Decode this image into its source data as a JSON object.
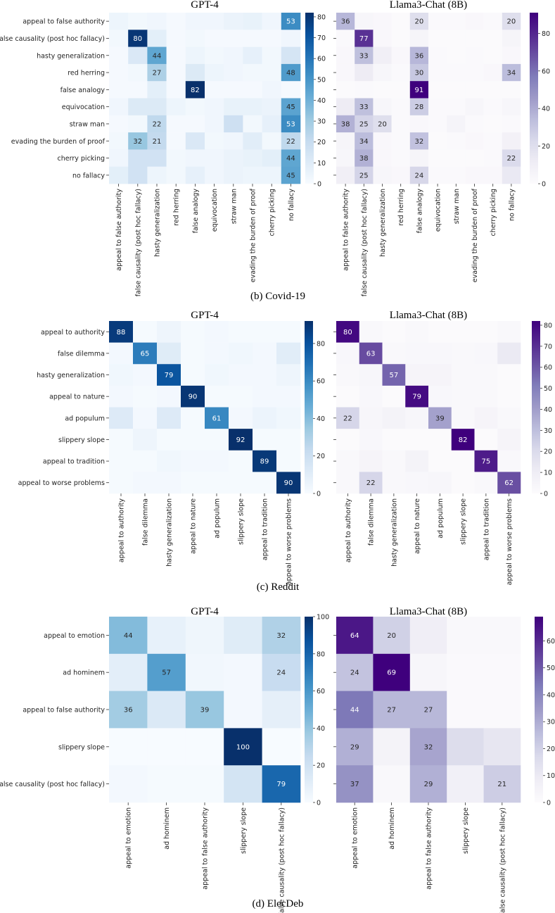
{
  "palettes": {
    "blues": [
      "#f7fbff",
      "#deebf7",
      "#c6dbef",
      "#9ecae1",
      "#6baed6",
      "#4292c6",
      "#2171b5",
      "#08519c",
      "#08306b"
    ],
    "purples": [
      "#fcfbfd",
      "#efedf5",
      "#dadaeb",
      "#bcbddc",
      "#9e9ac8",
      "#807dba",
      "#6a51a3",
      "#54278f",
      "#3f007d"
    ]
  },
  "chart_data": [
    {
      "id": "covid-gpt4",
      "type": "heatmap",
      "title": "GPT-4",
      "cmap": "blues",
      "vmin": 0,
      "vmax": 82,
      "categories": [
        "appeal to false authority",
        "false causality (post hoc fallacy)",
        "hasty generalization",
        "red herring",
        "false analogy",
        "equivocation",
        "straw man",
        "evading the burden of proof",
        "cherry picking",
        "no fallacy"
      ],
      "values": [
        [
          4,
          2,
          3,
          1,
          3,
          3,
          5,
          6,
          3,
          53
        ],
        [
          2,
          80,
          8,
          1,
          2,
          1,
          1,
          1,
          1,
          3
        ],
        [
          1,
          12,
          44,
          1,
          4,
          2,
          3,
          7,
          2,
          14
        ],
        [
          1,
          2,
          27,
          1,
          11,
          4,
          3,
          2,
          2,
          48
        ],
        [
          1,
          1,
          8,
          1,
          82,
          1,
          1,
          1,
          3,
          1
        ],
        [
          3,
          11,
          11,
          4,
          2,
          3,
          6,
          6,
          5,
          45
        ],
        [
          1,
          2,
          22,
          1,
          1,
          3,
          17,
          2,
          7,
          53
        ],
        [
          2,
          32,
          21,
          1,
          12,
          2,
          3,
          9,
          2,
          22
        ],
        [
          3,
          16,
          16,
          2,
          3,
          3,
          5,
          6,
          8,
          44
        ],
        [
          8,
          16,
          4,
          2,
          7,
          3,
          5,
          4,
          4,
          45
        ]
      ],
      "labels": [
        [
          null,
          null,
          null,
          null,
          null,
          null,
          null,
          null,
          null,
          53
        ],
        [
          null,
          80,
          null,
          null,
          null,
          null,
          null,
          null,
          null,
          null
        ],
        [
          null,
          null,
          44,
          null,
          null,
          null,
          null,
          null,
          null,
          null
        ],
        [
          null,
          null,
          27,
          null,
          null,
          null,
          null,
          null,
          null,
          48
        ],
        [
          null,
          null,
          null,
          null,
          82,
          null,
          null,
          null,
          null,
          null
        ],
        [
          null,
          null,
          null,
          null,
          null,
          null,
          null,
          null,
          null,
          45
        ],
        [
          null,
          null,
          22,
          null,
          null,
          null,
          null,
          null,
          null,
          53
        ],
        [
          null,
          32,
          21,
          null,
          null,
          null,
          null,
          null,
          null,
          22
        ],
        [
          null,
          null,
          null,
          null,
          null,
          null,
          null,
          null,
          null,
          44
        ],
        [
          null,
          null,
          null,
          null,
          null,
          null,
          null,
          null,
          null,
          45
        ]
      ],
      "ticks": [
        0,
        10,
        20,
        30,
        40,
        50,
        60,
        70,
        80
      ]
    },
    {
      "id": "covid-llama",
      "type": "heatmap",
      "title": "Llama3-Chat (8B)",
      "cmap": "purples",
      "vmin": 0,
      "vmax": 91,
      "categories": [
        "appeal to false authority",
        "false causality (post hoc fallacy)",
        "hasty generalization",
        "red herring",
        "false analogy",
        "equivocation",
        "straw man",
        "evading the burden of proof",
        "cherry picking",
        "no fallacy"
      ],
      "values": [
        [
          36,
          4,
          3,
          1,
          20,
          2,
          2,
          3,
          2,
          20
        ],
        [
          2,
          77,
          3,
          1,
          5,
          1,
          1,
          1,
          1,
          5
        ],
        [
          3,
          33,
          10,
          3,
          36,
          2,
          1,
          2,
          1,
          3
        ],
        [
          3,
          12,
          4,
          2,
          30,
          2,
          2,
          2,
          3,
          34
        ],
        [
          1,
          2,
          1,
          1,
          91,
          1,
          1,
          1,
          1,
          1
        ],
        [
          12,
          33,
          4,
          2,
          28,
          2,
          2,
          4,
          2,
          4
        ],
        [
          38,
          25,
          20,
          2,
          3,
          2,
          6,
          2,
          1,
          2
        ],
        [
          5,
          34,
          3,
          2,
          32,
          1,
          2,
          3,
          2,
          8
        ],
        [
          4,
          38,
          3,
          2,
          5,
          1,
          1,
          1,
          2,
          22
        ],
        [
          10,
          25,
          4,
          3,
          24,
          2,
          2,
          3,
          3,
          14
        ]
      ],
      "labels": [
        [
          36,
          null,
          null,
          null,
          20,
          null,
          null,
          null,
          null,
          20
        ],
        [
          null,
          77,
          null,
          null,
          null,
          null,
          null,
          null,
          null,
          null
        ],
        [
          null,
          33,
          null,
          null,
          36,
          null,
          null,
          null,
          null,
          null
        ],
        [
          null,
          null,
          null,
          null,
          30,
          null,
          null,
          null,
          null,
          34
        ],
        [
          null,
          null,
          null,
          null,
          91,
          null,
          null,
          null,
          null,
          null
        ],
        [
          null,
          33,
          null,
          null,
          28,
          null,
          null,
          null,
          null,
          null
        ],
        [
          38,
          25,
          20,
          null,
          null,
          null,
          null,
          null,
          null,
          null
        ],
        [
          null,
          34,
          null,
          null,
          32,
          null,
          null,
          null,
          null,
          null
        ],
        [
          null,
          38,
          null,
          null,
          null,
          null,
          null,
          null,
          null,
          22
        ],
        [
          null,
          25,
          null,
          null,
          24,
          null,
          null,
          null,
          null,
          null
        ]
      ],
      "ticks": [
        0,
        20,
        40,
        60,
        80
      ]
    },
    {
      "id": "reddit-gpt4",
      "type": "heatmap",
      "title": "GPT-4",
      "cmap": "blues",
      "vmin": 0,
      "vmax": 92,
      "categories": [
        "appeal to authority",
        "false dilemma",
        "hasty generalization",
        "appeal to nature",
        "ad populum",
        "slippery slope",
        "appeal to tradition",
        "appeal to worse problems"
      ],
      "values": [
        [
          88,
          1,
          4,
          1,
          2,
          1,
          1,
          1
        ],
        [
          2,
          65,
          11,
          1,
          2,
          3,
          2,
          10
        ],
        [
          3,
          2,
          79,
          1,
          3,
          2,
          2,
          4
        ],
        [
          2,
          1,
          2,
          90,
          1,
          1,
          2,
          2
        ],
        [
          12,
          2,
          12,
          1,
          61,
          2,
          5,
          3
        ],
        [
          1,
          4,
          1,
          1,
          1,
          92,
          1,
          1
        ],
        [
          1,
          1,
          3,
          2,
          2,
          1,
          89,
          1
        ],
        [
          1,
          2,
          2,
          1,
          1,
          1,
          1,
          90
        ]
      ],
      "labels": [
        [
          88,
          null,
          null,
          null,
          null,
          null,
          null,
          null
        ],
        [
          null,
          65,
          null,
          null,
          null,
          null,
          null,
          null
        ],
        [
          null,
          null,
          79,
          null,
          null,
          null,
          null,
          null
        ],
        [
          null,
          null,
          null,
          90,
          null,
          null,
          null,
          null
        ],
        [
          null,
          null,
          null,
          null,
          61,
          null,
          null,
          null
        ],
        [
          null,
          null,
          null,
          null,
          null,
          92,
          null,
          null
        ],
        [
          null,
          null,
          null,
          null,
          null,
          null,
          89,
          null
        ],
        [
          null,
          null,
          null,
          null,
          null,
          null,
          null,
          90
        ]
      ],
      "ticks": [
        0,
        20,
        40,
        60,
        80
      ]
    },
    {
      "id": "reddit-llama",
      "type": "heatmap",
      "title": "Llama3-Chat (8B)",
      "cmap": "purples",
      "vmin": 0,
      "vmax": 82,
      "categories": [
        "appeal to authority",
        "false dilemma",
        "hasty generalization",
        "appeal to nature",
        "ad populum",
        "slippery slope",
        "appeal to tradition",
        "appeal to worse problems"
      ],
      "values": [
        [
          80,
          2,
          1,
          2,
          1,
          1,
          1,
          2
        ],
        [
          3,
          63,
          2,
          3,
          3,
          2,
          3,
          12
        ],
        [
          2,
          4,
          57,
          5,
          5,
          2,
          2,
          1
        ],
        [
          1,
          3,
          1,
          79,
          3,
          2,
          2,
          1
        ],
        [
          22,
          4,
          6,
          4,
          39,
          2,
          5,
          2
        ],
        [
          1,
          3,
          1,
          1,
          1,
          82,
          1,
          5
        ],
        [
          2,
          5,
          2,
          6,
          1,
          1,
          75,
          2
        ],
        [
          2,
          22,
          2,
          3,
          4,
          1,
          2,
          62
        ]
      ],
      "labels": [
        [
          80,
          null,
          null,
          null,
          null,
          null,
          null,
          null
        ],
        [
          null,
          63,
          null,
          null,
          null,
          null,
          null,
          null
        ],
        [
          null,
          null,
          57,
          null,
          null,
          null,
          null,
          null
        ],
        [
          null,
          null,
          null,
          79,
          null,
          null,
          null,
          null
        ],
        [
          22,
          null,
          null,
          null,
          39,
          null,
          null,
          null
        ],
        [
          null,
          null,
          null,
          null,
          null,
          82,
          null,
          null
        ],
        [
          null,
          null,
          null,
          null,
          null,
          null,
          75,
          null
        ],
        [
          null,
          22,
          null,
          null,
          null,
          null,
          null,
          62
        ]
      ],
      "ticks": [
        0,
        10,
        20,
        30,
        40,
        50,
        60,
        70,
        80
      ]
    },
    {
      "id": "elecdeb-gpt4",
      "type": "heatmap",
      "title": "GPT-4",
      "cmap": "blues",
      "vmin": 0,
      "vmax": 100,
      "categories": [
        "appeal to emotion",
        "ad hominem",
        "appeal to false authority",
        "slippery slope",
        "false causality (post hoc fallacy)"
      ],
      "values": [
        [
          44,
          8,
          4,
          12,
          32
        ],
        [
          10,
          57,
          3,
          2,
          24
        ],
        [
          36,
          14,
          39,
          2,
          9
        ],
        [
          0,
          0,
          0,
          100,
          0
        ],
        [
          2,
          1,
          1,
          18,
          79
        ]
      ],
      "labels": [
        [
          44,
          null,
          null,
          null,
          32
        ],
        [
          null,
          57,
          null,
          null,
          24
        ],
        [
          36,
          null,
          39,
          null,
          null
        ],
        [
          null,
          null,
          null,
          100,
          null
        ],
        [
          null,
          null,
          null,
          null,
          79
        ]
      ],
      "ticks": [
        0,
        20,
        40,
        60,
        80,
        100
      ]
    },
    {
      "id": "elecdeb-llama",
      "type": "heatmap",
      "title": "Llama3-Chat (8B)",
      "cmap": "purples",
      "vmin": 0,
      "vmax": 69,
      "categories": [
        "appeal to emotion",
        "ad hominem",
        "appeal to false authority",
        "slippery slope",
        "false causality (post hoc fallacy)"
      ],
      "values": [
        [
          64,
          20,
          8,
          2,
          2
        ],
        [
          24,
          69,
          3,
          1,
          1
        ],
        [
          44,
          27,
          27,
          1,
          1
        ],
        [
          29,
          5,
          32,
          16,
          12
        ],
        [
          37,
          2,
          29,
          7,
          21
        ]
      ],
      "labels": [
        [
          64,
          20,
          null,
          null,
          null
        ],
        [
          24,
          69,
          null,
          null,
          null
        ],
        [
          44,
          27,
          27,
          null,
          null
        ],
        [
          29,
          null,
          32,
          null,
          null
        ],
        [
          37,
          null,
          29,
          null,
          21
        ]
      ],
      "ticks": [
        0,
        10,
        20,
        30,
        40,
        50,
        60
      ]
    }
  ],
  "captions": [
    "(b) Covid-19",
    "(c) Reddit",
    "(d) ElecDeb"
  ]
}
